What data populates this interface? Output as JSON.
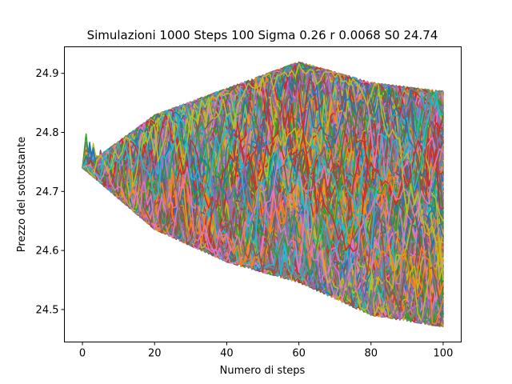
{
  "chart_data": {
    "type": "line",
    "title": "Simulazioni 1000 Steps 100 Sigma 0.26 r 0.0068 S0 24.74",
    "xlabel": "Numero di steps",
    "ylabel": "Prezzo del sottostante",
    "xlim": [
      -5,
      105
    ],
    "ylim": [
      24.445,
      24.945
    ],
    "xticks": [
      0,
      20,
      40,
      60,
      80,
      100
    ],
    "xtick_labels": [
      "0",
      "20",
      "40",
      "60",
      "80",
      "100"
    ],
    "yticks": [
      24.5,
      24.6,
      24.7,
      24.8,
      24.9
    ],
    "ytick_labels": [
      "24.5",
      "24.6",
      "24.7",
      "24.8",
      "24.9"
    ],
    "grid": false,
    "legend": "none",
    "n_simulations": 1000,
    "n_steps": 100,
    "sigma": 0.26,
    "r": 0.0068,
    "S0": 24.74,
    "colors": [
      "#1f77b4",
      "#ff7f0e",
      "#2ca02c",
      "#d62728",
      "#9467bd",
      "#8c564b",
      "#e377c2",
      "#7f7f7f",
      "#bcbd22",
      "#17becf"
    ],
    "series_summary": {
      "x": [
        0,
        20,
        40,
        60,
        80,
        100
      ],
      "max": [
        24.74,
        24.83,
        24.875,
        24.92,
        24.885,
        24.87
      ],
      "min": [
        24.74,
        24.635,
        24.58,
        24.545,
        24.49,
        24.47
      ]
    }
  }
}
